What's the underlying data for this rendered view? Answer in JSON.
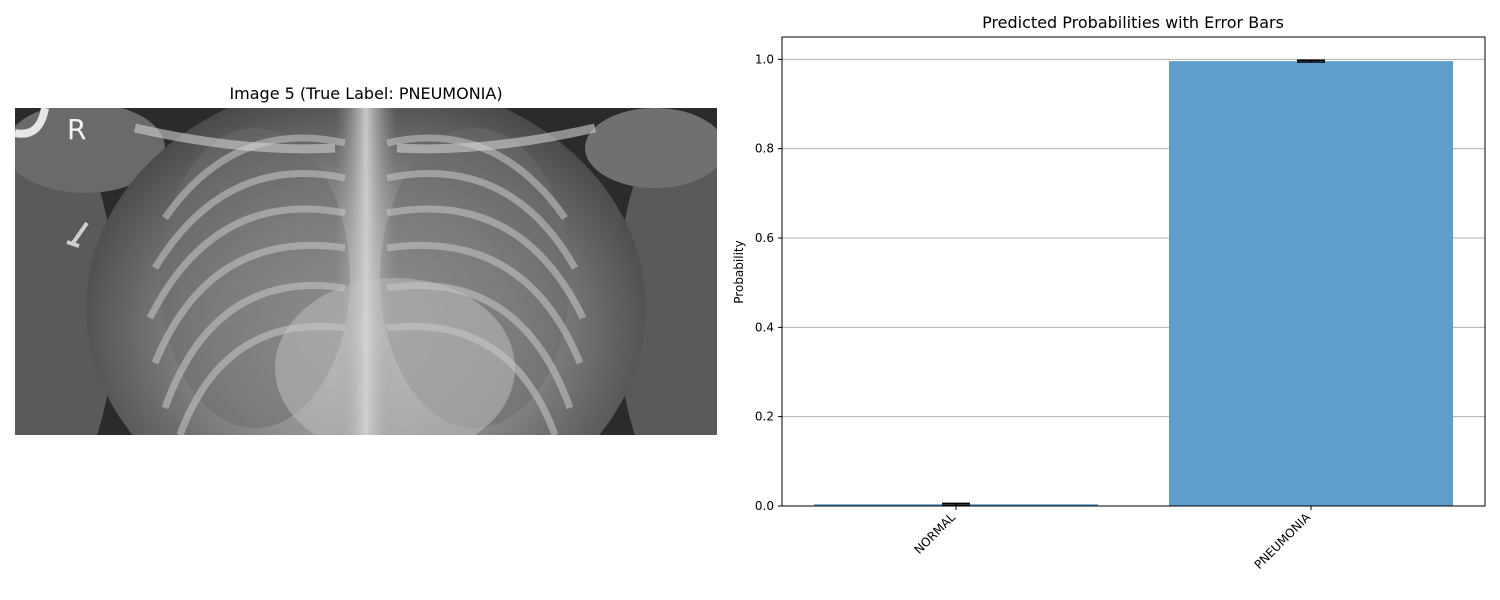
{
  "image_panel": {
    "title": "Image 5 (True Label: PNEUMONIA)",
    "marker_letter": "R"
  },
  "chart_data": {
    "type": "bar",
    "title": "Predicted Probabilities with Error Bars",
    "xlabel": "",
    "ylabel": "Probability",
    "categories": [
      "NORMAL",
      "PNEUMONIA"
    ],
    "values": [
      0.004,
      0.996
    ],
    "errors": [
      0.002,
      0.002
    ],
    "ylim": [
      0,
      1.05
    ],
    "yticks": [
      "0.0",
      "0.2",
      "0.4",
      "0.6",
      "0.8",
      "1.0"
    ],
    "grid": "y",
    "bar_color": "#5f9ecb",
    "error_color": "#000000"
  }
}
